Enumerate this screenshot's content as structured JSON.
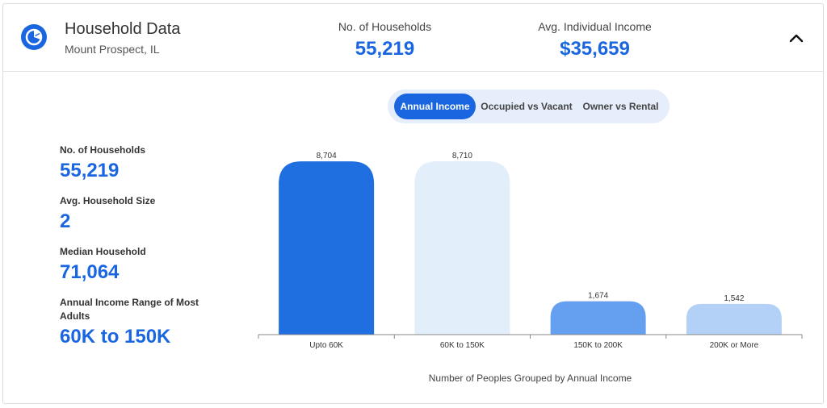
{
  "header": {
    "title": "Household Data",
    "location": "Mount Prospect, IL",
    "stats": [
      {
        "label": "No. of Households",
        "value": "55,219"
      },
      {
        "label": "Avg. Individual Income",
        "value": "$35,659"
      }
    ],
    "collapse_icon": "chevron-up-icon",
    "logo_icon": "pie-chart-icon"
  },
  "tabs": [
    {
      "label": "Annual Income",
      "active": true
    },
    {
      "label": "Occupied vs Vacant",
      "active": false
    },
    {
      "label": "Owner vs Rental",
      "active": false
    }
  ],
  "side_stats": [
    {
      "label": "No. of Households",
      "value": "55,219"
    },
    {
      "label": "Avg. Household Size",
      "value": "2"
    },
    {
      "label": "Median Household",
      "value": "71,064"
    },
    {
      "label": "Annual Income Range of Most Adults",
      "value": "60K to 150K"
    }
  ],
  "colors": {
    "accent": "#1a66e0",
    "bar_colors": [
      "#1f6fe0",
      "#e3eefb",
      "#659ff0",
      "#b3d0f7"
    ]
  },
  "chart_data": {
    "type": "bar",
    "categories": [
      "Upto 60K",
      "60K to 150K",
      "150K to 200K",
      "200K or More"
    ],
    "values": [
      8704,
      8710,
      1674,
      1542
    ],
    "value_labels": [
      "8,704",
      "8,710",
      "1,674",
      "1,542"
    ],
    "xlabel": "Number of Peoples Grouped by Annual Income",
    "ylabel": "",
    "ylim": [
      0,
      8710
    ],
    "grid": false,
    "legend": "none"
  }
}
